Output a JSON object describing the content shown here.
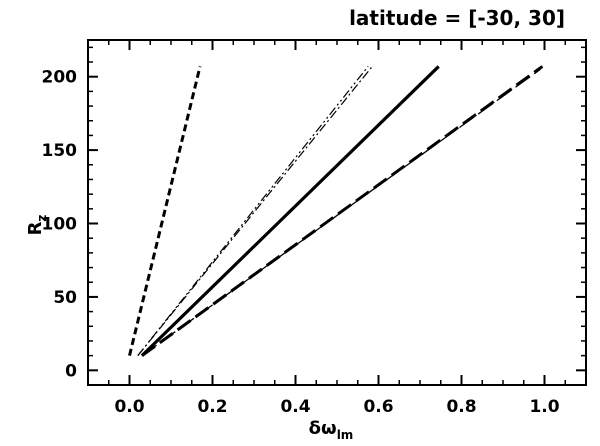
{
  "chart_data": {
    "type": "line",
    "title": "latitude = [-30, 30]",
    "xlabel": {
      "symbol": "δω",
      "subscript": "lm"
    },
    "ylabel": {
      "symbol": "R",
      "subscript": "z"
    },
    "xlim": [
      -0.1,
      1.1
    ],
    "ylim": [
      -10,
      225
    ],
    "xticks": [
      0.0,
      0.2,
      0.4,
      0.6,
      0.8,
      1.0
    ],
    "xtick_labels": [
      "0.0",
      "0.2",
      "0.4",
      "0.6",
      "0.8",
      "1.0"
    ],
    "yticks": [
      0,
      50,
      100,
      150,
      200
    ],
    "ytick_labels": [
      "0",
      "50",
      "100",
      "150",
      "200"
    ],
    "grid": false,
    "series": [
      {
        "style": "dashed-thick-short",
        "x": [
          0.0,
          0.17
        ],
        "y": [
          10,
          207
        ]
      },
      {
        "style": "dashdot-thin",
        "x": [
          0.02,
          0.585
        ],
        "y": [
          10,
          207
        ]
      },
      {
        "style": "dashdotdot-thin",
        "x": [
          0.02,
          0.575
        ],
        "y": [
          10,
          207
        ]
      },
      {
        "style": "solid-thick",
        "x": [
          0.03,
          0.745
        ],
        "y": [
          10,
          207
        ]
      },
      {
        "style": "dashed-thick-long",
        "x": [
          0.03,
          0.995
        ],
        "y": [
          10,
          207
        ]
      },
      {
        "style": "dashed-thin-long",
        "x": [
          0.03,
          0.99
        ],
        "y": [
          10,
          205
        ]
      }
    ]
  }
}
